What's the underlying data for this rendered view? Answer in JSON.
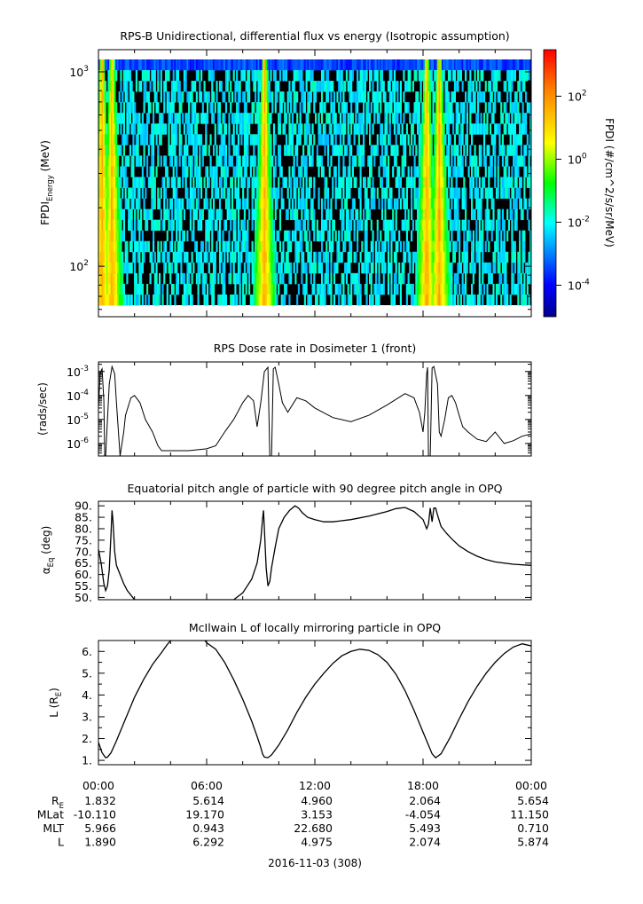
{
  "colors": {
    "axis": "#000000",
    "trace": "#000000",
    "no_data": "#000000"
  },
  "panels": [
    {
      "key": "spec",
      "title": "RPS-B  Unidirectional, differential flux vs energy (Isotropic assumption)",
      "ylabel": "FPDI",
      "ylabel_sub": "Energy",
      "ylabel_unit": " (MeV)"
    },
    {
      "key": "dose",
      "title": "RPS  Dose rate in Dosimeter 1 (front)",
      "ylabel": "(rads/sec)"
    },
    {
      "key": "pitch",
      "title": "Equatorial pitch angle of particle with 90 degree pitch angle in OPQ",
      "ylabel": "α",
      "ylabel_sub": "Eq",
      "ylabel_unit": " (deg)"
    },
    {
      "key": "lshell",
      "title": "McIlwain L of locally mirroring particle in OPQ",
      "ylabel": "L (R",
      "ylabel_sub": "E",
      "ylabel_unit": ")"
    }
  ],
  "colorbar": {
    "label": "FPDI (#/cm^2/s/sr/MeV)",
    "ticks": [
      {
        "base": "10",
        "exp": "2"
      },
      {
        "base": "10",
        "exp": "0"
      },
      {
        "base": "10",
        "exp": "-2"
      },
      {
        "base": "10",
        "exp": "-4"
      }
    ]
  },
  "x_axis": {
    "tick_labels": [
      "00:00",
      "06:00",
      "12:00",
      "18:00",
      "00:00"
    ],
    "date_label": "2016-11-03 (308)",
    "ephemeris": [
      {
        "name": "R",
        "name_sub": "E",
        "values": [
          "1.832",
          "5.614",
          "4.960",
          "2.064",
          "5.654"
        ]
      },
      {
        "name": "MLat",
        "values": [
          "-10.110",
          "19.170",
          "3.153",
          "-4.054",
          "11.150"
        ]
      },
      {
        "name": "MLT",
        "values": [
          "5.966",
          "0.943",
          "22.680",
          "5.493",
          "0.710"
        ]
      },
      {
        "name": "L",
        "values": [
          "1.890",
          "6.292",
          "4.975",
          "2.074",
          "5.874"
        ]
      }
    ]
  },
  "chart_data": [
    {
      "type": "heatmap",
      "title": "RPS-B  Unidirectional, differential flux vs energy (Isotropic assumption)",
      "xlabel": "",
      "ylabel": "FPDI Energy (MeV)",
      "x_range_hours": [
        0,
        24
      ],
      "y_range": [
        55,
        1300
      ],
      "y_scale": "log",
      "y_tick_labels": [
        {
          "base": "10",
          "exp": "3"
        },
        {
          "base": "10",
          "exp": "2"
        }
      ],
      "color_scale": "log",
      "color_range": [
        1e-05,
        3000
      ],
      "colormap": "rainbow (blue-cyan-green-yellow-red)",
      "flux_peaks_hours": [
        0.2,
        0.75,
        9.2,
        18.2,
        18.9
      ]
    },
    {
      "type": "line",
      "title": "RPS  Dose rate in Dosimeter 1 (front)",
      "xlabel": "",
      "ylabel": "(rads/sec)",
      "y_scale": "log",
      "ylim": [
        3e-07,
        0.0025
      ],
      "y_tick_labels": [
        {
          "base": "10",
          "exp": "-3"
        },
        {
          "base": "10",
          "exp": "-4"
        },
        {
          "base": "10",
          "exp": "-5"
        },
        {
          "base": "10",
          "exp": "-6"
        }
      ],
      "x_hours": [
        0.0,
        0.1,
        0.2,
        0.3,
        0.35,
        0.4,
        0.6,
        0.75,
        0.9,
        1.0,
        1.2,
        1.4,
        1.5,
        1.8,
        2.0,
        2.3,
        2.6,
        3.0,
        3.3,
        3.5,
        4.0,
        5.0,
        6.0,
        6.5,
        7.0,
        7.5,
        8.0,
        8.3,
        8.6,
        8.8,
        9.0,
        9.2,
        9.4,
        9.5,
        9.6,
        9.7,
        9.8,
        10.0,
        10.2,
        10.5,
        11.0,
        11.5,
        12.0,
        13.0,
        14.0,
        15.0,
        16.0,
        17.0,
        17.5,
        17.8,
        18.0,
        18.1,
        18.2,
        18.25,
        18.3,
        18.4,
        18.5,
        18.6,
        18.8,
        18.9,
        19.0,
        19.2,
        19.4,
        19.6,
        19.8,
        20.0,
        20.2,
        20.5,
        21.0,
        21.5,
        22.0,
        22.5,
        23.0,
        23.5,
        24.0
      ],
      "y_values": [
        3e-05,
        0.0009,
        0.0013,
        6e-05,
        3e-07,
        3e-07,
        0.0003,
        0.0016,
        0.0008,
        5e-05,
        3e-07,
        3e-06,
        1.5e-05,
        8e-05,
        0.0001,
        5e-05,
        1e-05,
        3e-06,
        8e-07,
        5e-07,
        5e-07,
        5e-07,
        6e-07,
        8e-07,
        3e-06,
        1e-05,
        5e-05,
        0.0001,
        6e-05,
        5e-06,
        5e-05,
        0.001,
        0.0015,
        3e-07,
        3e-07,
        0.0013,
        0.0015,
        0.0003,
        5e-05,
        2e-05,
        8e-05,
        6e-05,
        3e-05,
        1.2e-05,
        8e-06,
        1.5e-05,
        4e-05,
        0.00012,
        8e-05,
        2e-05,
        3e-06,
        2e-05,
        0.0008,
        0.0015,
        3e-07,
        3e-07,
        0.0014,
        0.0016,
        0.0003,
        3e-06,
        2e-06,
        1e-05,
        8e-05,
        0.0001,
        5e-05,
        1.5e-05,
        5e-06,
        3e-06,
        1.5e-06,
        1.2e-06,
        3e-06,
        1e-06,
        1.3e-06,
        2e-06,
        2.5e-06
      ]
    },
    {
      "type": "line",
      "title": "Equatorial pitch angle of particle with 90 degree pitch angle in OPQ",
      "xlabel": "",
      "ylabel": "αEq (deg)",
      "ylim": [
        49,
        92
      ],
      "y_ticks": [
        50,
        55,
        60,
        65,
        70,
        75,
        80,
        85,
        90
      ],
      "x_hours": [
        0.0,
        0.15,
        0.3,
        0.4,
        0.5,
        0.6,
        0.7,
        0.75,
        0.8,
        0.9,
        1.0,
        1.2,
        1.4,
        1.6,
        1.8,
        2.0,
        7.5,
        8.0,
        8.5,
        8.8,
        9.0,
        9.1,
        9.15,
        9.2,
        9.3,
        9.4,
        9.5,
        9.6,
        9.8,
        10.0,
        10.3,
        10.6,
        10.9,
        11.1,
        11.3,
        11.6,
        12.0,
        12.5,
        13.0,
        14.0,
        15.0,
        16.0,
        16.5,
        17.0,
        17.5,
        18.0,
        18.1,
        18.2,
        18.3,
        18.4,
        18.5,
        18.6,
        18.7,
        18.8,
        19.0,
        19.3,
        19.6,
        20.0,
        20.5,
        21.0,
        21.5,
        22.0,
        23.0,
        24.0
      ],
      "y_values": [
        71,
        65,
        56,
        53,
        55,
        62,
        78,
        88,
        84,
        70,
        64,
        60,
        56,
        53,
        51,
        49,
        49,
        52,
        58,
        65,
        75,
        84,
        88,
        80,
        63,
        55,
        57,
        63,
        72,
        80,
        85,
        88,
        90,
        89,
        87,
        85,
        84,
        83,
        83,
        84,
        85.5,
        87.5,
        88.8,
        89.3,
        87.5,
        84,
        82,
        80,
        82,
        89,
        83,
        89,
        89,
        86,
        81,
        78,
        75.5,
        72.5,
        70,
        68,
        66.5,
        65.5,
        64.5,
        64
      ]
    },
    {
      "type": "line",
      "title": "McIlwain L of locally mirroring particle in OPQ",
      "xlabel": "",
      "ylabel": "L (RE)",
      "ylim": [
        0.8,
        6.5
      ],
      "y_ticks": [
        1,
        1.5,
        2,
        2.5,
        3,
        3.5,
        4,
        4.5,
        5,
        5.5,
        6
      ],
      "x_hours": [
        0.0,
        0.2,
        0.4,
        0.5,
        0.7,
        1.0,
        1.5,
        2.0,
        2.5,
        3.0,
        3.5,
        3.8,
        4.0,
        5.0,
        5.9,
        6.0,
        6.5,
        7.0,
        7.5,
        8.0,
        8.5,
        8.8,
        9.0,
        9.1,
        9.2,
        9.4,
        9.6,
        10.0,
        10.5,
        11.0,
        11.5,
        12.0,
        12.5,
        13.0,
        13.5,
        14.0,
        14.5,
        15.0,
        15.5,
        16.0,
        16.5,
        17.0,
        17.5,
        18.0,
        18.3,
        18.5,
        18.7,
        19.0,
        19.5,
        20.0,
        20.5,
        21.0,
        21.5,
        22.0,
        22.5,
        23.0,
        23.5,
        24.0
      ],
      "y_values": [
        1.83,
        1.35,
        1.12,
        1.15,
        1.35,
        1.9,
        2.9,
        3.9,
        4.7,
        5.4,
        5.95,
        6.3,
        6.5,
        6.5,
        6.5,
        6.4,
        6.1,
        5.5,
        4.7,
        3.8,
        2.8,
        2.1,
        1.6,
        1.3,
        1.15,
        1.12,
        1.25,
        1.7,
        2.4,
        3.2,
        3.9,
        4.5,
        5.0,
        5.45,
        5.8,
        6.0,
        6.1,
        6.05,
        5.85,
        5.5,
        4.95,
        4.2,
        3.3,
        2.3,
        1.7,
        1.3,
        1.12,
        1.3,
        2.05,
        2.9,
        3.7,
        4.4,
        5.0,
        5.5,
        5.9,
        6.2,
        6.35,
        6.25
      ]
    }
  ]
}
